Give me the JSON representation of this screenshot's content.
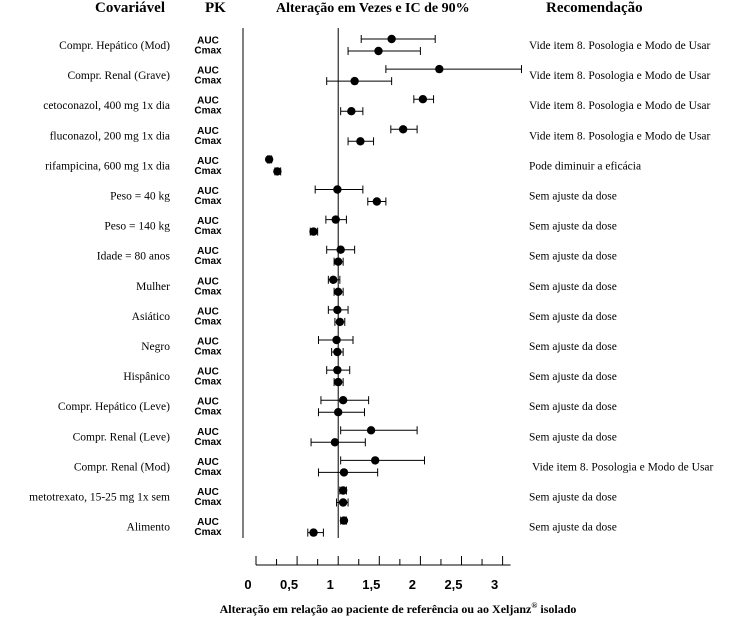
{
  "chart_data": {
    "type": "forest",
    "headers": {
      "covariate": "Covariável",
      "pk": "PK",
      "effect": "Alteração em Vezes e IC de 90%",
      "recommendation": "Recomendação"
    },
    "pk_labels": [
      "AUC",
      "Cmax"
    ],
    "xlabel": "Alteração em relação ao paciente de referência ou ao Xeljanz",
    "xlabel_sup": "®",
    "xlabel_suffix": " isolado",
    "xlim": [
      0,
      3
    ],
    "ticks": [
      0,
      0.5,
      1,
      1.5,
      2,
      2.5,
      3
    ],
    "tick_labels": [
      "0",
      "0,5",
      "1",
      "1,5",
      "2",
      "2,5",
      "3"
    ],
    "reference_line": 1,
    "rows": [
      {
        "covariate": "Compr. Hepático (Mod)",
        "recommendation": "Vide item 8. Posologia e Modo de Usar",
        "auc": {
          "est": 1.65,
          "lo": 1.28,
          "hi": 2.18
        },
        "cmax": {
          "est": 1.49,
          "lo": 1.12,
          "hi": 2.0
        }
      },
      {
        "covariate": "Compr. Renal (Grave)",
        "recommendation": "Vide item 8. Posologia e Modo de Usar",
        "auc": {
          "est": 2.23,
          "lo": 1.58,
          "hi": 3.23
        },
        "cmax": {
          "est": 1.2,
          "lo": 0.86,
          "hi": 1.65
        }
      },
      {
        "covariate": "cetoconazol, 400 mg 1x dia",
        "recommendation": "Vide item 8. Posologia e Modo de Usar",
        "auc": {
          "est": 2.03,
          "lo": 1.92,
          "hi": 2.16
        },
        "cmax": {
          "est": 1.16,
          "lo": 1.03,
          "hi": 1.3
        }
      },
      {
        "covariate": "fluconazol, 200 mg 1x dia",
        "recommendation": "Vide item 8. Posologia e Modo de Usar",
        "auc": {
          "est": 1.79,
          "lo": 1.64,
          "hi": 1.96
        },
        "cmax": {
          "est": 1.27,
          "lo": 1.12,
          "hi": 1.43
        }
      },
      {
        "covariate": "rifampicina, 600 mg 1x dia",
        "recommendation": "Pode diminuir a eficácia",
        "auc": {
          "est": 0.16,
          "lo": 0.14,
          "hi": 0.19
        },
        "cmax": {
          "est": 0.26,
          "lo": 0.23,
          "hi": 0.3
        }
      },
      {
        "covariate": "Peso = 40 kg",
        "recommendation": "Sem ajuste da dose",
        "auc": {
          "est": 0.99,
          "lo": 0.72,
          "hi": 1.3
        },
        "cmax": {
          "est": 1.47,
          "lo": 1.36,
          "hi": 1.58
        }
      },
      {
        "covariate": "Peso = 140 kg",
        "recommendation": "Sem ajuste da dose",
        "auc": {
          "est": 0.97,
          "lo": 0.85,
          "hi": 1.1
        },
        "cmax": {
          "est": 0.7,
          "lo": 0.66,
          "hi": 0.75
        }
      },
      {
        "covariate": "Idade = 80 anos",
        "recommendation": "Sem ajuste da dose",
        "auc": {
          "est": 1.03,
          "lo": 0.86,
          "hi": 1.2
        },
        "cmax": {
          "est": 1.0,
          "lo": 0.95,
          "hi": 1.06
        }
      },
      {
        "covariate": "Mulher",
        "recommendation": "Sem ajuste da dose",
        "auc": {
          "est": 0.94,
          "lo": 0.88,
          "hi": 1.02
        },
        "cmax": {
          "est": 1.0,
          "lo": 0.95,
          "hi": 1.06
        }
      },
      {
        "covariate": "Asiático",
        "recommendation": "Sem ajuste da dose",
        "auc": {
          "est": 0.99,
          "lo": 0.88,
          "hi": 1.12
        },
        "cmax": {
          "est": 1.02,
          "lo": 0.96,
          "hi": 1.08
        }
      },
      {
        "covariate": "Negro",
        "recommendation": "Sem ajuste da dose",
        "auc": {
          "est": 0.98,
          "lo": 0.76,
          "hi": 1.18
        },
        "cmax": {
          "est": 0.99,
          "lo": 0.92,
          "hi": 1.06
        }
      },
      {
        "covariate": "Hispânico",
        "recommendation": "Sem ajuste da dose",
        "auc": {
          "est": 0.99,
          "lo": 0.86,
          "hi": 1.14
        },
        "cmax": {
          "est": 1.0,
          "lo": 0.95,
          "hi": 1.06
        }
      },
      {
        "covariate": "Compr. Hepático (Leve)",
        "recommendation": "Sem ajuste da dose",
        "auc": {
          "est": 1.06,
          "lo": 0.79,
          "hi": 1.37
        },
        "cmax": {
          "est": 1.0,
          "lo": 0.76,
          "hi": 1.32
        }
      },
      {
        "covariate": "Compr. Renal (Leve)",
        "recommendation": "Sem ajuste da dose",
        "auc": {
          "est": 1.4,
          "lo": 1.03,
          "hi": 1.96
        },
        "cmax": {
          "est": 0.96,
          "lo": 0.67,
          "hi": 1.33
        }
      },
      {
        "covariate": "Compr. Renal (Mod)",
        "recommendation": "Vide item 8. Posologia e Modo de Usar",
        "auc": {
          "est": 1.45,
          "lo": 1.03,
          "hi": 2.05
        },
        "cmax": {
          "est": 1.07,
          "lo": 0.76,
          "hi": 1.48
        }
      },
      {
        "covariate": "metotrexato, 15-25 mg 1x sem",
        "recommendation": "Sem ajuste da dose",
        "auc": {
          "est": 1.06,
          "lo": 1.02,
          "hi": 1.1
        },
        "cmax": {
          "est": 1.06,
          "lo": 0.98,
          "hi": 1.12
        }
      },
      {
        "covariate": "Alimento",
        "recommendation": "Sem ajuste da dose",
        "auc": {
          "est": 1.07,
          "lo": 1.03,
          "hi": 1.1
        },
        "cmax": {
          "est": 0.7,
          "lo": 0.63,
          "hi": 0.82
        }
      }
    ]
  }
}
